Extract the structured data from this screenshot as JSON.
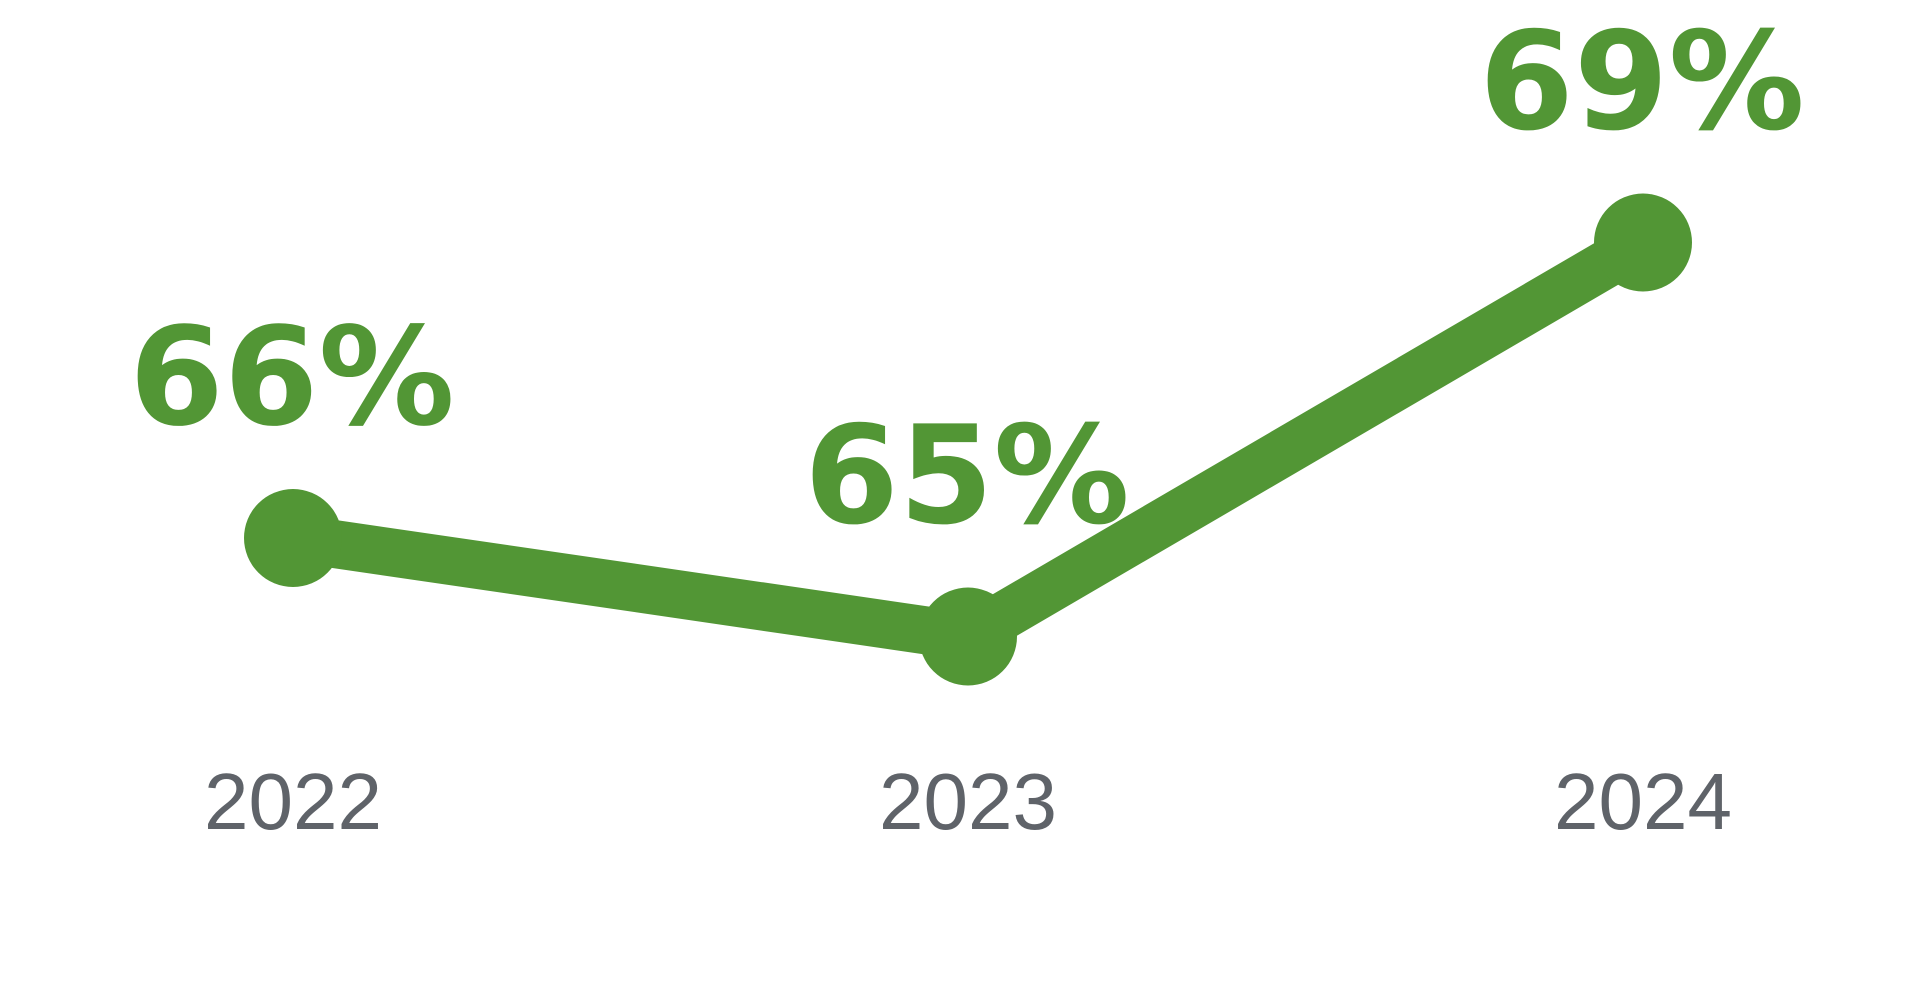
{
  "chart_data": {
    "type": "line",
    "title": "",
    "xlabel": "",
    "ylabel": "",
    "categories": [
      "2022",
      "2023",
      "2024"
    ],
    "series": [
      {
        "values": [
          66,
          65,
          69
        ],
        "labels": [
          "66%",
          "65%",
          "69%"
        ]
      }
    ],
    "grid": false,
    "legend": "none",
    "colors": {
      "line": "#529635",
      "label": "#529635",
      "tick": "#5f6369"
    }
  }
}
